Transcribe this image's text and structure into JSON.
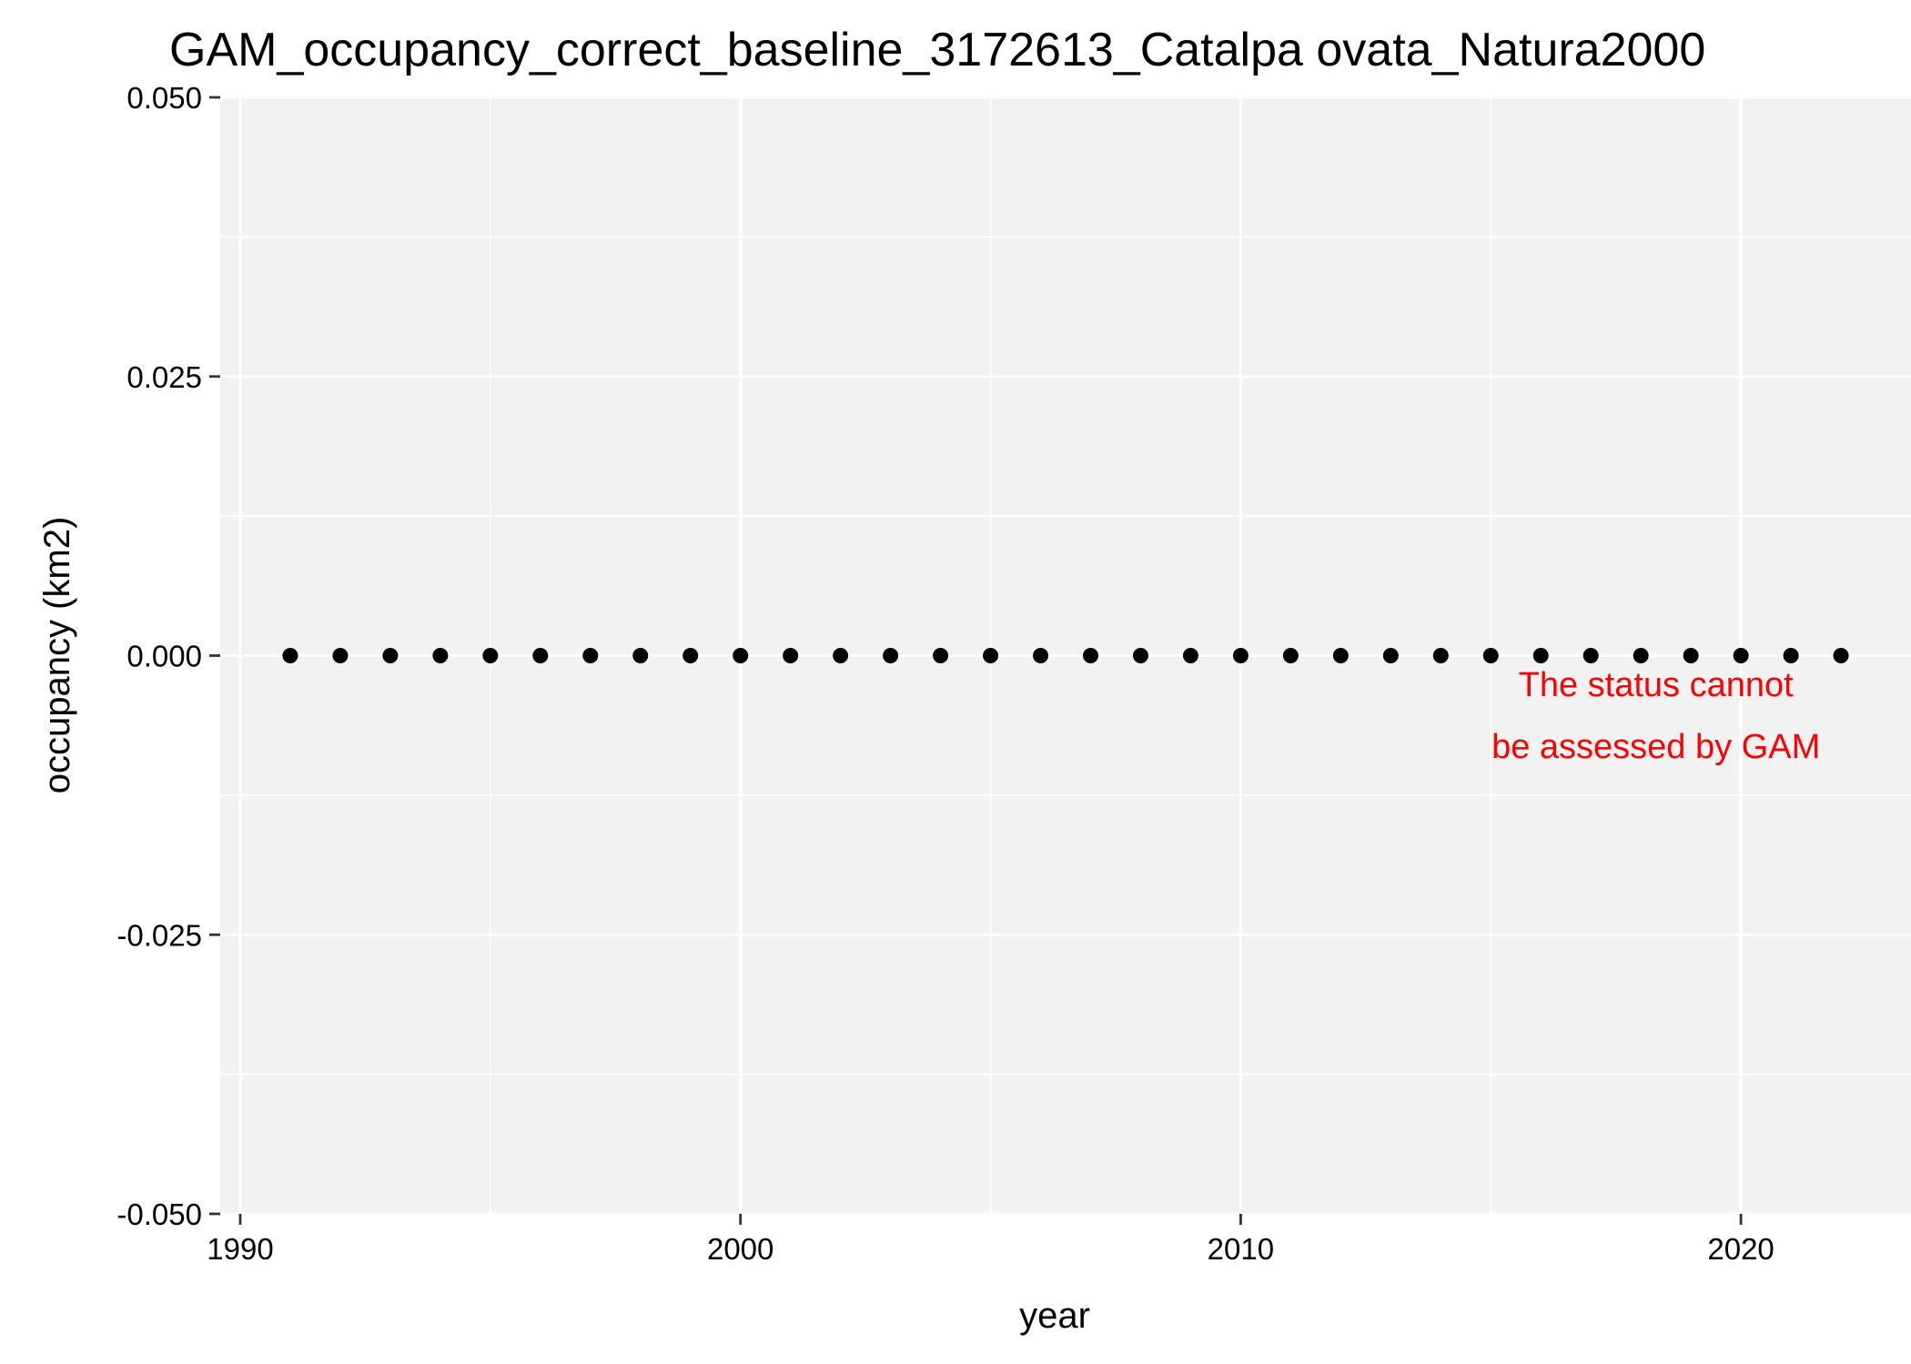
{
  "chart_data": {
    "type": "scatter",
    "title": "GAM_occupancy_correct_baseline_3172613_Catalpa ovata_Natura2000",
    "xlabel": "year",
    "ylabel": "occupancy (km2)",
    "xlim": [
      1989.6,
      2023.4
    ],
    "ylim": [
      -0.05,
      0.05
    ],
    "x_ticks": [
      1990,
      2000,
      2010,
      2020
    ],
    "x_tick_labels": [
      "1990",
      "2000",
      "2010",
      "2020"
    ],
    "x_minor_ticks": [
      1995,
      2005,
      2015
    ],
    "y_ticks": [
      -0.05,
      -0.025,
      0,
      0.025,
      0.05
    ],
    "y_tick_labels": [
      "-0.050",
      "-0.025",
      "0.000",
      "0.025",
      "0.050"
    ],
    "y_minor_ticks": [
      -0.0375,
      -0.0125,
      0.0125,
      0.0375
    ],
    "grid": true,
    "series": [
      {
        "x": [
          1991,
          1992,
          1993,
          1994,
          1995,
          1996,
          1997,
          1998,
          1999,
          2000,
          2001,
          2002,
          2003,
          2004,
          2005,
          2006,
          2007,
          2008,
          2009,
          2010,
          2011,
          2012,
          2013,
          2014,
          2015,
          2016,
          2017,
          2018,
          2019,
          2020,
          2021,
          2022
        ],
        "y": [
          0,
          0,
          0,
          0,
          0,
          0,
          0,
          0,
          0,
          0,
          0,
          0,
          0,
          0,
          0,
          0,
          0,
          0,
          0,
          0,
          0,
          0,
          0,
          0,
          0,
          0,
          0,
          0,
          0,
          0,
          0,
          0
        ],
        "color": "#000000"
      }
    ],
    "annotation": {
      "lines": [
        "The status cannot",
        "be assessed by GAM"
      ],
      "x": 2018.3,
      "y": -0.0015,
      "color": "#ff0000"
    },
    "colors": {
      "panel_background": "#f2f2f2",
      "grid_line": "#ffffff",
      "text": "#000000"
    }
  }
}
